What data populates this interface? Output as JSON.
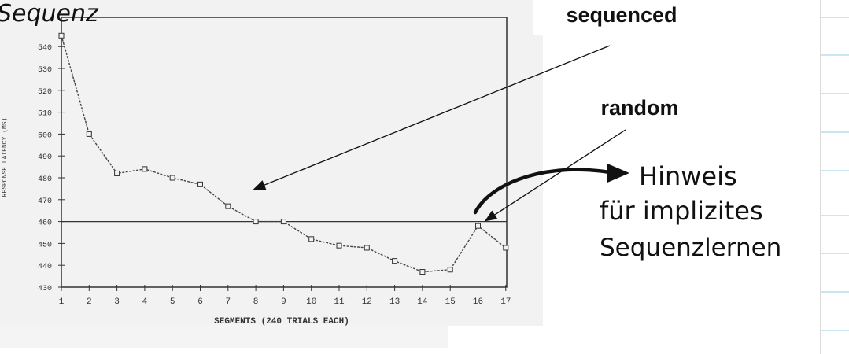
{
  "page": {
    "title_handwritten": "Sequenz"
  },
  "annotations": {
    "sequenced": "sequenced",
    "random": "random",
    "note_lines": [
      "Hinweis",
      "für implizites",
      "Sequenzlernen"
    ]
  },
  "chart_data": {
    "type": "line",
    "xlabel": "SEGMENTS (240 TRIALS EACH)",
    "ylabel": "RESPONSE LATENCY (MS)",
    "x": [
      1,
      2,
      3,
      4,
      5,
      6,
      7,
      8,
      9,
      10,
      11,
      12,
      13,
      14,
      15,
      16,
      17
    ],
    "series": [
      {
        "values": [
          545,
          500,
          482,
          484,
          480,
          477,
          467,
          460,
          460,
          452,
          449,
          448,
          442,
          437,
          438,
          458,
          448
        ]
      }
    ],
    "reference_line": 460,
    "yticks": [
      430,
      440,
      450,
      460,
      470,
      480,
      490,
      500,
      510,
      520,
      530,
      540
    ],
    "xlim": [
      1,
      17
    ],
    "ylim": [
      430,
      548
    ],
    "grid": false
  },
  "colors": {
    "ink": "#111111",
    "chart_line": "#333333",
    "notebook_rule": "#a9d6ee",
    "margin_line": "#cfcfcf"
  }
}
